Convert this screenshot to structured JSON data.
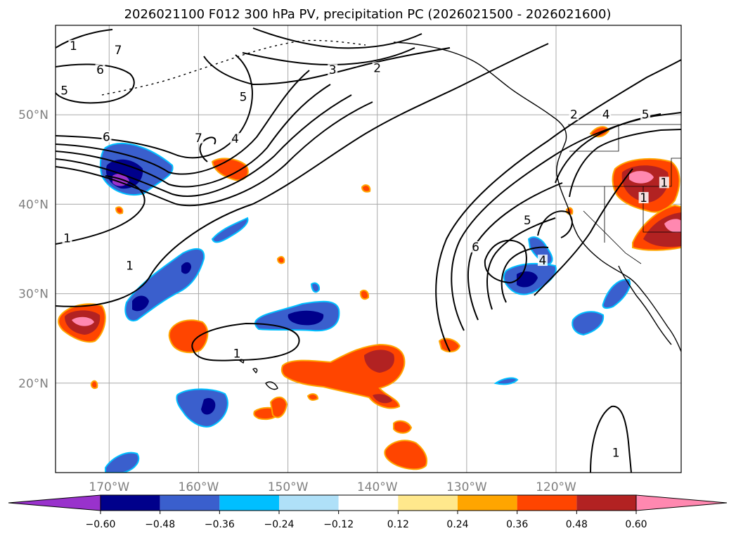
{
  "title": "2026021100 F012 300 hPa PV, precipitation PC (2026021500 - 2026021600)",
  "map": {
    "lon_ticks": [
      {
        "lon": -170,
        "label": "170°W"
      },
      {
        "lon": -160,
        "label": "160°W"
      },
      {
        "lon": -150,
        "label": "150°W"
      },
      {
        "lon": -140,
        "label": "140°W"
      },
      {
        "lon": -130,
        "label": "130°W"
      },
      {
        "lon": -120,
        "label": "120°W"
      }
    ],
    "lat_ticks": [
      {
        "lat": 50,
        "label": "50°N"
      },
      {
        "lat": 40,
        "label": "40°N"
      },
      {
        "lat": 30,
        "label": "30°N"
      },
      {
        "lat": 20,
        "label": "20°N"
      }
    ],
    "extent": {
      "lon_min": -176,
      "lon_max": -106,
      "lat_min": 10,
      "lat_max": 60
    },
    "pv_contour_labels": [
      {
        "text": "1",
        "lon": -174,
        "lat": 57.5
      },
      {
        "text": "7",
        "lon": -169,
        "lat": 57
      },
      {
        "text": "6",
        "lon": -171,
        "lat": 54.8
      },
      {
        "text": "5",
        "lon": -175,
        "lat": 52.5
      },
      {
        "text": "3",
        "lon": -145,
        "lat": 54.8
      },
      {
        "text": "2",
        "lon": -140,
        "lat": 55
      },
      {
        "text": "5",
        "lon": -155,
        "lat": 51.8
      },
      {
        "text": "7",
        "lon": -160,
        "lat": 47.2
      },
      {
        "text": "6",
        "lon": -170.3,
        "lat": 47.3
      },
      {
        "text": "4",
        "lon": -155.9,
        "lat": 47.1
      },
      {
        "text": "1",
        "lon": -174.7,
        "lat": 36
      },
      {
        "text": "1",
        "lon": -167.7,
        "lat": 32.9
      },
      {
        "text": "1",
        "lon": -155.7,
        "lat": 23.1
      },
      {
        "text": "2",
        "lon": -118,
        "lat": 49.8
      },
      {
        "text": "4",
        "lon": -114.4,
        "lat": 49.8
      },
      {
        "text": "5",
        "lon": -110,
        "lat": 49.8
      },
      {
        "text": "6",
        "lon": -129,
        "lat": 35
      },
      {
        "text": "5",
        "lon": -123.2,
        "lat": 38
      },
      {
        "text": "4",
        "lon": -121.5,
        "lat": 33.5
      },
      {
        "text": "1",
        "lon": -110.2,
        "lat": 40.5
      },
      {
        "text": "1",
        "lon": -107.9,
        "lat": 42.2
      },
      {
        "text": "1",
        "lon": -113.3,
        "lat": 12
      }
    ]
  },
  "colorbar": {
    "tick_labels": [
      "−0.60",
      "−0.48",
      "−0.36",
      "−0.24",
      "−0.12",
      "0.12",
      "0.24",
      "0.36",
      "0.48",
      "0.60"
    ],
    "colors": [
      "#9932cc",
      "#00008b",
      "#3a5fcd",
      "#00bfff",
      "#afe0f8",
      "#ffffff",
      "#ffe88c",
      "#ffa500",
      "#ff4500",
      "#b22222",
      "#ff88b0"
    ]
  }
}
